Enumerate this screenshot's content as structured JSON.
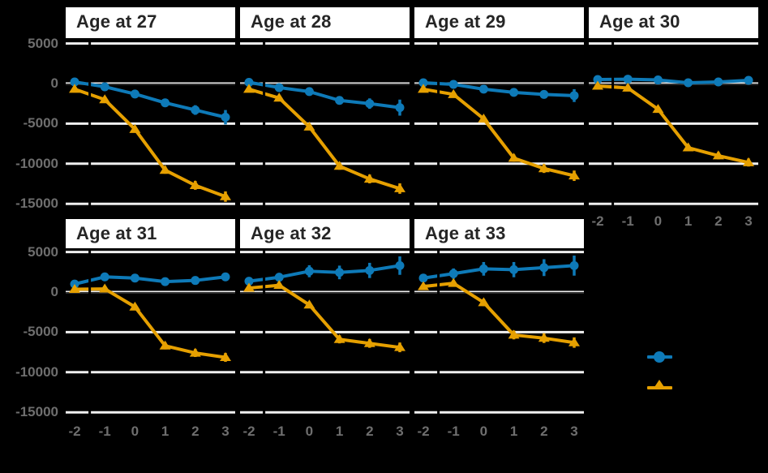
{
  "background": "#000000",
  "colors": {
    "blue": "#0e7ab8",
    "orange": "#e6a000",
    "gridline": "#f0f0f0",
    "zero_line": "#2e2e2e",
    "vline": "#000000",
    "strip_bg": "#ffffff",
    "strip_text": "#262626",
    "axis_text": "#6e6e6e"
  },
  "chart_data": {
    "type": "line",
    "description": "Faceted event-study line chart, 7 facets by age, two series with point markers and vertical error bars",
    "x": [
      -2,
      -1,
      0,
      1,
      2,
      3
    ],
    "x_tick_labels": [
      "-2",
      "-1",
      "0",
      "1",
      "2",
      "3"
    ],
    "y_tick_values": [
      5000,
      0,
      -5000,
      -10000,
      -15000
    ],
    "y_tick_labels": [
      "5000",
      "0",
      "-5000",
      "-10000",
      "-15000"
    ],
    "ylim": [
      -15700,
      5700
    ],
    "grid": "major-horizontal-only",
    "legend_position": "right-middle",
    "legend_labels_visible": false,
    "reference": {
      "vline_x": -1.5,
      "hline_y": 0
    },
    "series_meta": [
      {
        "key": "blue_circle",
        "marker": "circle",
        "color_key": "blue"
      },
      {
        "key": "orange_triangle",
        "marker": "triangle",
        "color_key": "orange"
      }
    ],
    "facets": [
      {
        "title": "Age at 27",
        "blue_circle": {
          "values": [
            200,
            -400,
            -1300,
            -2400,
            -3300,
            -4200
          ],
          "se": [
            200,
            200,
            300,
            400,
            600,
            900
          ]
        },
        "orange_triangle": {
          "values": [
            -700,
            -2000,
            -5700,
            -10800,
            -12700,
            -14100
          ],
          "se": [
            200,
            250,
            350,
            450,
            550,
            650
          ]
        }
      },
      {
        "title": "Age at 28",
        "blue_circle": {
          "values": [
            150,
            -500,
            -1000,
            -2100,
            -2500,
            -3000
          ],
          "se": [
            200,
            200,
            300,
            450,
            650,
            1000
          ]
        },
        "orange_triangle": {
          "values": [
            -700,
            -1800,
            -5400,
            -10300,
            -11900,
            -13100
          ],
          "se": [
            200,
            250,
            350,
            450,
            550,
            650
          ]
        }
      },
      {
        "title": "Age at 29",
        "blue_circle": {
          "values": [
            100,
            -100,
            -700,
            -1100,
            -1350,
            -1500
          ],
          "se": [
            200,
            200,
            300,
            400,
            500,
            800
          ]
        },
        "orange_triangle": {
          "values": [
            -700,
            -1350,
            -4400,
            -9300,
            -10600,
            -11500
          ],
          "se": [
            200,
            250,
            350,
            450,
            550,
            650
          ]
        }
      },
      {
        "title": "Age at 30",
        "blue_circle": {
          "values": [
            500,
            550,
            450,
            100,
            200,
            400
          ],
          "se": [
            200,
            250,
            250,
            250,
            300,
            350
          ]
        },
        "orange_triangle": {
          "values": [
            -300,
            -550,
            -3200,
            -8000,
            -9000,
            -9850
          ],
          "se": [
            200,
            250,
            300,
            400,
            450,
            500
          ]
        }
      },
      {
        "title": "Age at 31",
        "blue_circle": {
          "values": [
            1000,
            1900,
            1750,
            1300,
            1450,
            1900
          ],
          "se": [
            300,
            500,
            450,
            400,
            400,
            450
          ]
        },
        "orange_triangle": {
          "values": [
            350,
            400,
            -1850,
            -6700,
            -7600,
            -8150
          ],
          "se": [
            250,
            300,
            350,
            450,
            500,
            550
          ]
        }
      },
      {
        "title": "Age at 32",
        "blue_circle": {
          "values": [
            1350,
            1850,
            2600,
            2450,
            2700,
            3300
          ],
          "se": [
            350,
            550,
            750,
            850,
            950,
            1150
          ]
        },
        "orange_triangle": {
          "values": [
            500,
            850,
            -1600,
            -5900,
            -6400,
            -6900
          ],
          "se": [
            250,
            350,
            400,
            500,
            550,
            600
          ]
        }
      },
      {
        "title": "Age at 33",
        "blue_circle": {
          "values": [
            1750,
            2300,
            2900,
            2800,
            3050,
            3300
          ],
          "se": [
            400,
            650,
            850,
            950,
            1050,
            1250
          ]
        },
        "orange_triangle": {
          "values": [
            700,
            1100,
            -1300,
            -5350,
            -5750,
            -6300
          ],
          "se": [
            300,
            400,
            450,
            550,
            600,
            650
          ]
        }
      }
    ]
  }
}
